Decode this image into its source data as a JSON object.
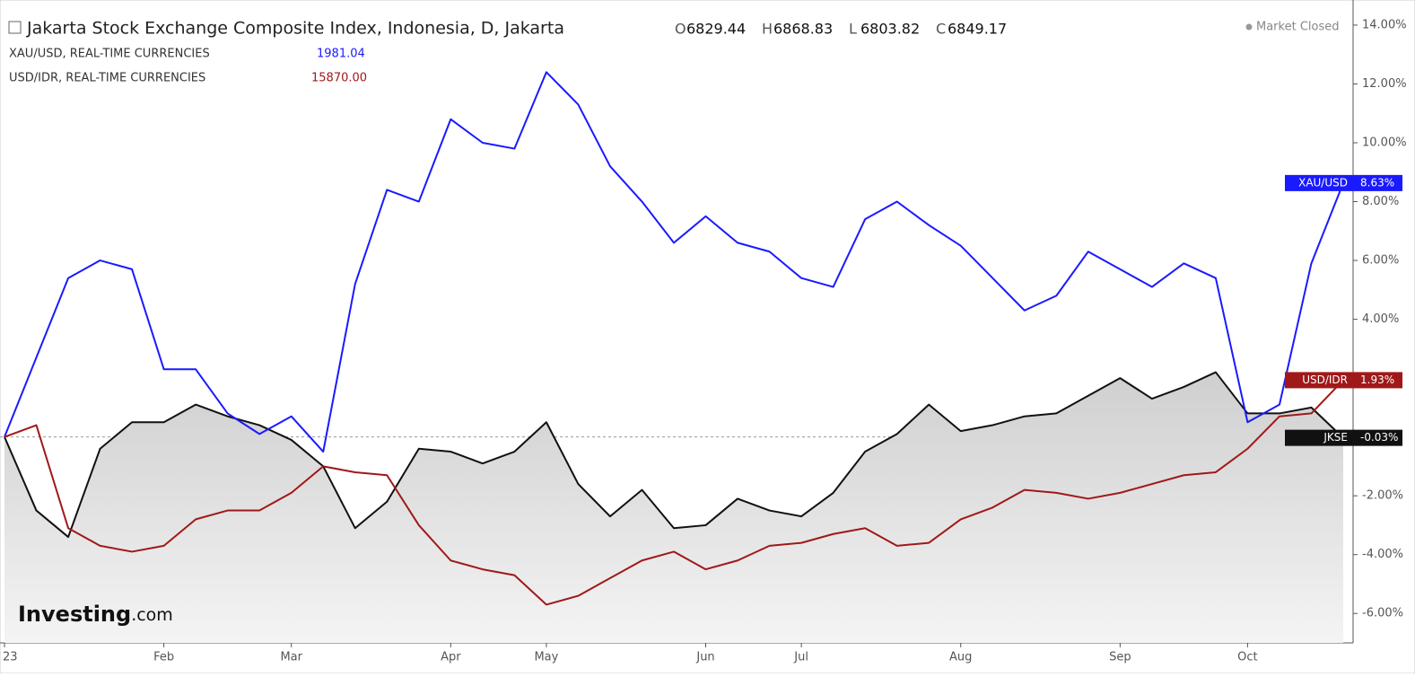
{
  "chart_data": {
    "type": "line",
    "title": "Jakarta Stock Exchange Composite Index, Indonesia, D, Jakarta",
    "ohlc": [
      {
        "label": "O",
        "value": "6829.44"
      },
      {
        "label": "H",
        "value": "6868.83"
      },
      {
        "label": "L",
        "value": "6803.82"
      },
      {
        "label": "C",
        "value": "6849.17"
      }
    ],
    "status": "Market Closed",
    "watermark": [
      "Investing",
      ".com"
    ],
    "legend": [
      {
        "text": "XAU/USD, REAL-TIME CURRENCIES",
        "price": "1981.04",
        "color": "#1a1aff"
      },
      {
        "text": "USD/IDR, REAL-TIME CURRENCIES",
        "price": "15870.00",
        "color": "#a01818"
      }
    ],
    "categories": [
      "23",
      null,
      null,
      null,
      null,
      "Feb",
      null,
      null,
      null,
      "Mar",
      null,
      null,
      null,
      null,
      "Apr",
      null,
      null,
      "May",
      null,
      null,
      null,
      null,
      "Jun",
      null,
      null,
      "Jul",
      null,
      null,
      null,
      null,
      "Aug",
      null,
      null,
      null,
      null,
      "Sep",
      null,
      null,
      null,
      "Oct",
      null,
      null,
      null
    ],
    "series": [
      {
        "name": "JKSE",
        "color": "#111111",
        "area": true,
        "values": [
          0,
          -2.5,
          -3.4,
          -0.4,
          0.5,
          0.5,
          1.1,
          0.7,
          0.4,
          -0.1,
          -1.0,
          -3.1,
          -2.2,
          -0.4,
          -0.5,
          -0.9,
          -0.5,
          0.5,
          -1.6,
          -2.7,
          -1.8,
          -3.1,
          -3.0,
          -2.1,
          -2.5,
          -2.7,
          -1.9,
          -0.5,
          0.1,
          1.1,
          0.2,
          0.4,
          0.7,
          0.8,
          1.4,
          2.0,
          1.3,
          1.7,
          2.2,
          0.8,
          0.8,
          1.0,
          -0.03
        ],
        "value_labels": [
          null,
          null,
          null,
          null,
          null,
          null,
          null,
          null,
          null,
          null,
          null,
          null,
          null,
          null,
          null,
          null,
          null,
          null,
          null,
          null,
          null,
          null,
          null,
          null,
          null,
          null,
          null,
          null,
          null,
          null,
          null,
          null,
          null,
          null,
          null,
          null,
          null,
          null,
          null,
          null,
          null,
          null,
          "-0.03%"
        ]
      },
      {
        "name": "XAU/USD",
        "color": "#1a1aff",
        "values": [
          0,
          2.7,
          5.4,
          6.0,
          5.7,
          2.3,
          2.3,
          0.8,
          0.1,
          0.7,
          -0.5,
          5.2,
          8.4,
          8.0,
          10.8,
          10.0,
          9.8,
          12.4,
          11.3,
          9.2,
          8.0,
          6.6,
          7.5,
          6.6,
          6.3,
          5.4,
          5.1,
          7.4,
          8.0,
          7.2,
          6.5,
          5.4,
          4.3,
          4.8,
          6.3,
          5.7,
          5.1,
          5.9,
          5.4,
          0.5,
          1.1,
          5.9,
          8.63
        ],
        "value_labels": [
          null,
          null,
          null,
          null,
          null,
          null,
          null,
          null,
          null,
          null,
          null,
          null,
          null,
          null,
          null,
          null,
          null,
          null,
          null,
          null,
          null,
          null,
          null,
          null,
          null,
          null,
          null,
          null,
          null,
          null,
          null,
          null,
          null,
          null,
          null,
          null,
          null,
          null,
          null,
          null,
          null,
          null,
          "8.63%"
        ]
      },
      {
        "name": "USD/IDR",
        "color": "#a01818",
        "values": [
          0,
          0.4,
          -3.1,
          -3.7,
          -3.9,
          -3.7,
          -2.8,
          -2.5,
          -2.5,
          -1.9,
          -1.0,
          -1.2,
          -1.3,
          -3.0,
          -4.2,
          -4.5,
          -4.7,
          -5.7,
          -5.4,
          -4.8,
          -4.2,
          -3.9,
          -4.5,
          -4.2,
          -3.7,
          -3.6,
          -3.3,
          -3.1,
          -3.7,
          -3.6,
          -2.8,
          -2.4,
          -1.8,
          -1.9,
          -2.1,
          -1.9,
          -1.6,
          -1.3,
          -1.2,
          -0.4,
          0.7,
          0.8,
          1.93
        ],
        "value_labels": [
          null,
          null,
          null,
          null,
          null,
          null,
          null,
          null,
          null,
          null,
          null,
          null,
          null,
          null,
          null,
          null,
          null,
          null,
          null,
          null,
          null,
          null,
          null,
          null,
          null,
          null,
          null,
          null,
          null,
          null,
          null,
          null,
          null,
          null,
          null,
          null,
          null,
          null,
          null,
          null,
          null,
          null,
          "1.93%"
        ]
      }
    ],
    "ylim": [
      -7,
      14.7
    ],
    "yticks": [
      {
        "value": 14,
        "label": "14.00%"
      },
      {
        "value": 12,
        "label": "12.00%"
      },
      {
        "value": 10,
        "label": "10.00%"
      },
      {
        "value": 8,
        "label": "8.00%"
      },
      {
        "value": 6,
        "label": "6.00%"
      },
      {
        "value": 4,
        "label": "4.00%"
      },
      {
        "value": -2,
        "label": "-2.00%"
      },
      {
        "value": -4,
        "label": "-4.00%"
      },
      {
        "value": -6,
        "label": "-6.00%"
      }
    ],
    "baseline": 0
  }
}
